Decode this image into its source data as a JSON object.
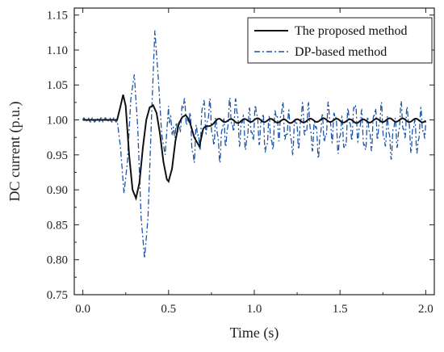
{
  "chart_data": {
    "type": "line",
    "xlabel": "Time (s)",
    "ylabel": "DC current (p.u.)",
    "xlim": [
      -0.05,
      2.05
    ],
    "ylim": [
      0.75,
      1.16
    ],
    "xticks": [
      0.0,
      0.5,
      1.0,
      1.5,
      2.0
    ],
    "xtick_labels": [
      "0.0",
      "0.5",
      "1.0",
      "1.5",
      "2.0"
    ],
    "yticks": [
      0.75,
      0.8,
      0.85,
      0.9,
      0.95,
      1.0,
      1.05,
      1.1,
      1.15
    ],
    "ytick_labels": [
      "0.75",
      "0.80",
      "0.85",
      "0.90",
      "0.95",
      "1.00",
      "1.05",
      "1.10",
      "1.15"
    ],
    "grid": false,
    "legend_position": "top-right",
    "series": [
      {
        "name": "The proposed method",
        "color": "#111111",
        "style": "solid",
        "x": [
          0.0,
          0.1,
          0.2,
          0.22,
          0.235,
          0.25,
          0.27,
          0.29,
          0.31,
          0.33,
          0.35,
          0.37,
          0.39,
          0.41,
          0.43,
          0.45,
          0.47,
          0.49,
          0.5,
          0.52,
          0.54,
          0.56,
          0.58,
          0.6,
          0.62,
          0.65,
          0.68,
          0.7,
          0.75,
          0.8,
          0.9,
          1.0,
          1.2,
          1.4,
          1.6,
          1.8,
          2.0
        ],
        "y": [
          1.0,
          1.0,
          1.0,
          1.02,
          1.036,
          1.02,
          0.95,
          0.9,
          0.888,
          0.91,
          0.96,
          1.0,
          1.018,
          1.021,
          1.01,
          0.98,
          0.94,
          0.915,
          0.912,
          0.93,
          0.97,
          0.995,
          1.004,
          1.007,
          1.0,
          0.975,
          0.962,
          0.985,
          0.995,
          1.0,
          0.998,
          1.0,
          0.998,
          1.0,
          0.998,
          1.0,
          0.999
        ]
      },
      {
        "name": "DP-based method",
        "color": "#1f55a8",
        "style": "dashdot",
        "x": [
          0.0,
          0.1,
          0.2,
          0.22,
          0.24,
          0.26,
          0.28,
          0.3,
          0.32,
          0.34,
          0.36,
          0.38,
          0.4,
          0.42,
          0.44,
          0.46,
          0.48,
          0.5,
          0.52,
          0.55,
          0.6,
          0.65,
          0.7,
          0.8,
          0.9,
          1.0,
          1.2,
          1.4,
          1.6,
          1.8,
          2.0
        ],
        "y": [
          1.0,
          1.0,
          1.0,
          0.96,
          0.895,
          0.94,
          1.03,
          1.065,
          0.99,
          0.86,
          0.802,
          0.86,
          1.0,
          1.128,
          1.06,
          0.98,
          0.95,
          1.02,
          1.0,
          0.98,
          1.01,
          0.97,
          1.0,
          0.98,
          1.0,
          0.985,
          0.99,
          0.985,
          0.99,
          0.985,
          0.99
        ],
        "oscillation_range_after_0.5s": [
          0.955,
          1.025
        ]
      }
    ]
  }
}
